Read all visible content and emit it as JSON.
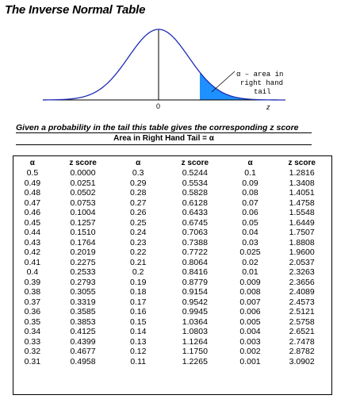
{
  "title": "The Inverse Normal Table",
  "figure": {
    "zero_label": "0",
    "z_label": "z",
    "tail_label_line1": "α – area in",
    "tail_label_line2": "right hand",
    "tail_label_line3": "tail",
    "shade_color": "#1e90ff",
    "curve_color": "#1f2db5"
  },
  "subtitle": "Given a probability in the tail this table gives the corresponding z score",
  "subtitle2": "Area in Right Hand Tail = α",
  "table": {
    "headers": [
      "α",
      "z score",
      "α",
      "z score",
      "α",
      "z score"
    ],
    "columns": [
      [
        "0.5",
        "0.49",
        "0.48",
        "0.47",
        "0.46",
        "0.45",
        "0.44",
        "0.43",
        "0.42",
        "0.41",
        "0.4",
        "0.39",
        "0.38",
        "0.37",
        "0.36",
        "0.35",
        "0.34",
        "0.33",
        "0.32",
        "0.31"
      ],
      [
        "0.0000",
        "0.0251",
        "0.0502",
        "0.0753",
        "0.1004",
        "0.1257",
        "0.1510",
        "0.1764",
        "0.2019",
        "0.2275",
        "0.2533",
        "0.2793",
        "0.3055",
        "0.3319",
        "0.3585",
        "0.3853",
        "0.4125",
        "0.4399",
        "0.4677",
        "0.4958"
      ],
      [
        "0.3",
        "0.29",
        "0.28",
        "0.27",
        "0.26",
        "0.25",
        "0.24",
        "0.23",
        "0.22",
        "0.21",
        "0.2",
        "0.19",
        "0.18",
        "0.17",
        "0.16",
        "0.15",
        "0.14",
        "0.13",
        "0.12",
        "0.11"
      ],
      [
        "0.5244",
        "0.5534",
        "0.5828",
        "0.6128",
        "0.6433",
        "0.6745",
        "0.7063",
        "0.7388",
        "0.7722",
        "0.8064",
        "0.8416",
        "0.8779",
        "0.9154",
        "0.9542",
        "0.9945",
        "1.0364",
        "1.0803",
        "1.1264",
        "1.1750",
        "1.2265"
      ],
      [
        "0.1",
        "0.09",
        "0.08",
        "0.07",
        "0.06",
        "0.05",
        "0.04",
        "0.03",
        "0.025",
        "0.02",
        "0.01",
        "0.009",
        "0.008",
        "0.007",
        "0.006",
        "0.005",
        "0.004",
        "0.003",
        "0.002",
        "0.001"
      ],
      [
        "1.2816",
        "1.3408",
        "1.4051",
        "1.4758",
        "1.5548",
        "1.6449",
        "1.7507",
        "1.8808",
        "1.9600",
        "2.0537",
        "2.3263",
        "2.3656",
        "2.4089",
        "2.4573",
        "2.5121",
        "2.5758",
        "2.6521",
        "2.7478",
        "2.8782",
        "3.0902"
      ]
    ]
  }
}
